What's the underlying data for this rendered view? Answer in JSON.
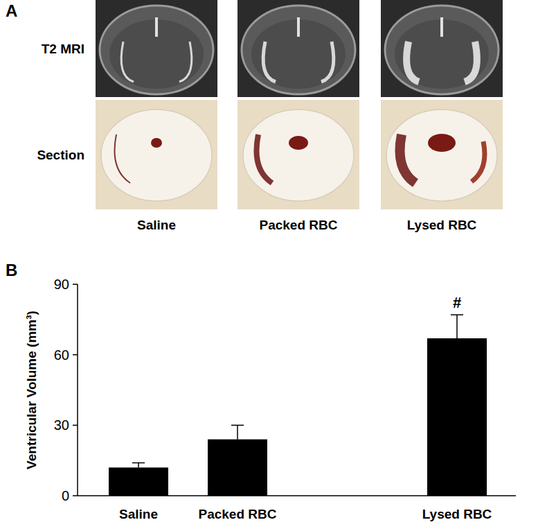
{
  "panel_labels": [
    "A",
    "B"
  ],
  "panel_a": {
    "row_labels": [
      "T2 MRI",
      "Section"
    ],
    "column_labels": [
      "Saline",
      "Packed RBC",
      "Lysed RBC"
    ]
  },
  "chart_data": {
    "type": "bar",
    "categories": [
      "Saline",
      "Packed RBC",
      "Lysed RBC"
    ],
    "values": [
      12,
      24,
      67
    ],
    "errors": [
      2,
      6,
      10
    ],
    "color": "#000000",
    "ylabel": "Ventricular Volume (mm³)",
    "ylim": [
      0,
      90
    ],
    "yticks": [
      0,
      30,
      60,
      90
    ],
    "grid": false,
    "annotations": [
      {
        "category": "Lysed RBC",
        "text": "#"
      }
    ]
  }
}
